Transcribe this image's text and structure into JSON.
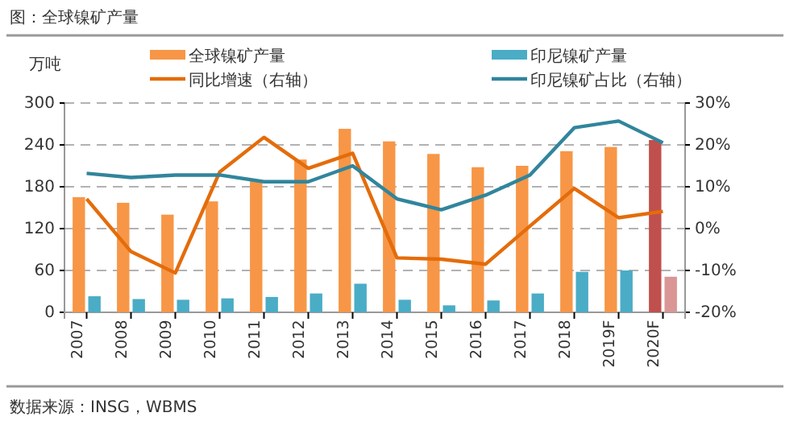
{
  "chart_data": {
    "type": "bar",
    "title": "图：全球镍矿产量",
    "ylabel": "万吨",
    "categories": [
      "2007",
      "2008",
      "2009",
      "2010",
      "2011",
      "2012",
      "2013",
      "2014",
      "2015",
      "2016",
      "2017",
      "2018",
      "2019F",
      "2020F"
    ],
    "series": [
      {
        "name": "全球镍矿产量",
        "color": "#f79646",
        "colors": [
          "#f79646",
          "#f79646",
          "#f79646",
          "#f79646",
          "#f79646",
          "#f79646",
          "#f79646",
          "#f79646",
          "#f79646",
          "#f79646",
          "#f79646",
          "#f79646",
          "#f79646",
          "#c0504d"
        ],
        "values": [
          165,
          157,
          140,
          159,
          188,
          219,
          263,
          245,
          227,
          208,
          210,
          231,
          237,
          247
        ]
      },
      {
        "name": "印尼镍矿产量",
        "color": "#4bacc6",
        "colors": [
          "#4bacc6",
          "#4bacc6",
          "#4bacc6",
          "#4bacc6",
          "#4bacc6",
          "#4bacc6",
          "#4bacc6",
          "#4bacc6",
          "#4bacc6",
          "#4bacc6",
          "#4bacc6",
          "#4bacc6",
          "#4bacc6",
          "#d99694"
        ],
        "values": [
          23,
          19,
          18,
          20,
          22,
          27,
          41,
          18,
          10,
          17,
          27,
          58,
          60,
          51
        ]
      },
      {
        "name": "同比增速（右轴）",
        "type": "line",
        "axis": "y2",
        "color": "#e46c0a",
        "values": [
          7.1,
          -5.5,
          -10.6,
          13.5,
          21.8,
          14.4,
          18.0,
          -7.0,
          -7.3,
          -8.5,
          0.6,
          9.6,
          2.6,
          4.1
        ]
      },
      {
        "name": "印尼镍矿占比（右轴）",
        "type": "line",
        "axis": "y2",
        "color": "#31859c",
        "values": [
          13.2,
          12.2,
          12.8,
          12.8,
          11.2,
          11.2,
          15.0,
          7.1,
          4.5,
          8.0,
          12.8,
          24.1,
          25.7,
          20.5
        ]
      }
    ],
    "ylim": [
      0,
      300
    ],
    "yticks": [
      0,
      60,
      120,
      180,
      240,
      300
    ],
    "y2lim": [
      -20,
      30
    ],
    "y2ticks": [
      {
        "value": -20,
        "label": "-20%"
      },
      {
        "value": -10,
        "label": "-10%"
      },
      {
        "value": 0,
        "label": "0%"
      },
      {
        "value": 10,
        "label": "10%"
      },
      {
        "value": 20,
        "label": "20%"
      },
      {
        "value": 30,
        "label": "30%"
      }
    ],
    "grid": "y",
    "legend": "top",
    "marker": "none",
    "line_style": "solid",
    "annotations": [
      "数据来源：INSG，WBMS"
    ]
  }
}
